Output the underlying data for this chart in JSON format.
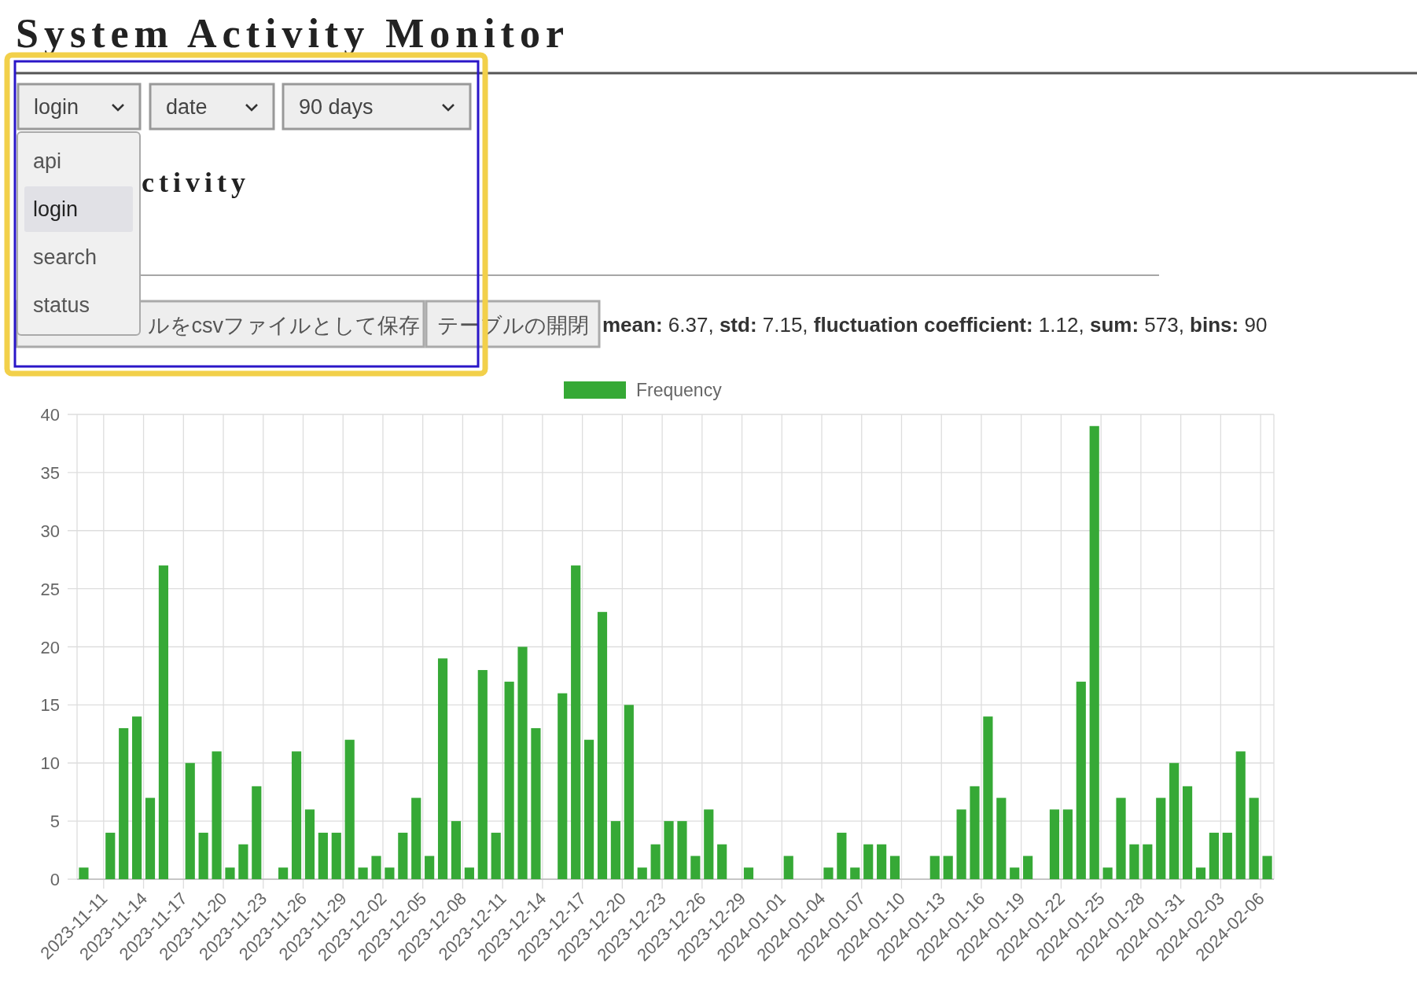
{
  "chart_data": {
    "type": "bar",
    "title": "System Activity Monitor",
    "annotations": [
      "login",
      "date",
      "90 days",
      "ctivity",
      "ルをcsvファイルとして保存",
      "テーブルの開閉",
      "mean: 6.37, std: 7.15, fluctuation coefficient: 1.12, sum: 573, bins: 90",
      "api",
      "login",
      "search",
      "status"
    ],
    "x": [
      "2023-11-09T12:00",
      "2023-11-10T12:00",
      "2023-11-11T12:00",
      "2023-11-12T12:00",
      "2023-11-13T12:00",
      "2023-11-14T12:00",
      "2023-11-15T12:00",
      "2023-11-16T12:00",
      "2023-11-17T12:00",
      "2023-11-18T12:00",
      "2023-11-19T12:00",
      "2023-11-20T12:00",
      "2023-11-21T12:00",
      "2023-11-22T12:00",
      "2023-11-23T12:00",
      "2023-11-24T12:00",
      "2023-11-25T12:00",
      "2023-11-26T12:00",
      "2023-11-27T12:00",
      "2023-11-28T12:00",
      "2023-11-29T12:00",
      "2023-11-30T12:00",
      "2023-12-01T12:00",
      "2023-12-02T12:00",
      "2023-12-03T12:00",
      "2023-12-04T12:00",
      "2023-12-05T12:00",
      "2023-12-06T12:00",
      "2023-12-07T12:00",
      "2023-12-08T12:00",
      "2023-12-09T12:00",
      "2023-12-10T12:00",
      "2023-12-11T12:00",
      "2023-12-12T12:00",
      "2023-12-13T12:00",
      "2023-12-14T12:00",
      "2023-12-15T12:00",
      "2023-12-16T12:00",
      "2023-12-17T12:00",
      "2023-12-18T12:00",
      "2023-12-19T12:00",
      "2023-12-20T12:00",
      "2023-12-21T12:00",
      "2023-12-22T12:00",
      "2023-12-23T12:00",
      "2023-12-24T12:00",
      "2023-12-25T12:00",
      "2023-12-26T12:00",
      "2023-12-27T12:00",
      "2023-12-28T12:00",
      "2023-12-29T12:00",
      "2023-12-30T12:00",
      "2023-12-31T12:00",
      "2024-01-01T12:00",
      "2024-01-02T12:00",
      "2024-01-03T12:00",
      "2024-01-04T12:00",
      "2024-01-05T12:00",
      "2024-01-06T12:00",
      "2024-01-07T12:00",
      "2024-01-08T12:00",
      "2024-01-09T12:00",
      "2024-01-10T12:00",
      "2024-01-11T12:00",
      "2024-01-12T12:00",
      "2024-01-13T12:00",
      "2024-01-14T12:00",
      "2024-01-15T12:00",
      "2024-01-16T12:00",
      "2024-01-17T12:00",
      "2024-01-18T12:00",
      "2024-01-19T12:00",
      "2024-01-20T12:00",
      "2024-01-21T12:00",
      "2024-01-22T12:00",
      "2024-01-23T12:00",
      "2024-01-24T12:00",
      "2024-01-25T12:00",
      "2024-01-26T12:00",
      "2024-01-27T12:00",
      "2024-01-28T12:00",
      "2024-01-29T12:00",
      "2024-01-30T12:00",
      "2024-01-31T12:00",
      "2024-02-01T12:00",
      "2024-02-02T12:00",
      "2024-02-03T12:00",
      "2024-02-04T12:00",
      "2024-02-05T12:00",
      "2024-02-06T12:00"
    ],
    "series": [
      {
        "name": "Frequency",
        "color": "#36a936",
        "values": [
          1,
          0,
          4,
          13,
          14,
          7,
          27,
          0,
          10,
          4,
          11,
          1,
          3,
          8,
          0,
          1,
          11,
          6,
          4,
          4,
          12,
          1,
          2,
          1,
          4,
          7,
          2,
          19,
          5,
          1,
          18,
          4,
          17,
          20,
          13,
          0,
          16,
          27,
          12,
          23,
          5,
          15,
          1,
          3,
          5,
          5,
          2,
          6,
          3,
          0,
          1,
          0,
          0,
          2,
          0,
          0,
          1,
          4,
          1,
          3,
          3,
          2,
          0,
          0,
          2,
          2,
          6,
          8,
          14,
          7,
          1,
          2,
          0,
          6,
          6,
          17,
          39,
          1,
          7,
          3,
          3,
          7,
          10,
          8,
          1,
          4,
          4,
          11,
          7,
          2
        ]
      }
    ],
    "xlim": [
      "2023-11-09",
      "2024-02-07"
    ],
    "xticks": [
      "2023-11-11",
      "2023-11-14",
      "2023-11-17",
      "2023-11-20",
      "2023-11-23",
      "2023-11-26",
      "2023-11-29",
      "2023-12-02",
      "2023-12-05",
      "2023-12-08",
      "2023-12-11",
      "2023-12-14",
      "2023-12-17",
      "2023-12-20",
      "2023-12-23",
      "2023-12-26",
      "2023-12-29",
      "2024-01-01",
      "2024-01-04",
      "2024-01-07",
      "2024-01-10",
      "2024-01-13",
      "2024-01-16",
      "2024-01-19",
      "2024-01-22",
      "2024-01-25",
      "2024-01-28",
      "2024-01-31",
      "2024-02-03",
      "2024-02-06"
    ],
    "ylim": [
      0,
      40
    ],
    "yticks": [
      0,
      5,
      10,
      15,
      20,
      25,
      30,
      35,
      40
    ],
    "grid": true,
    "legend": "top"
  }
}
